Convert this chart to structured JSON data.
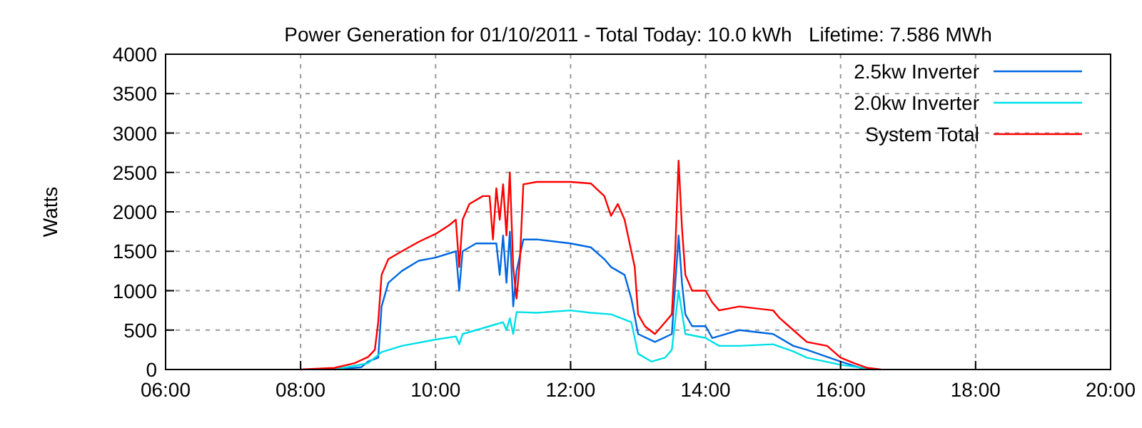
{
  "chart_data": {
    "type": "line",
    "title": "Power Generation for 01/10/2011 - Total Today: 10.0 kWh   Lifetime: 7.586 MWh",
    "ylabel": "Watts",
    "xlim": [
      6,
      20
    ],
    "xticks": [
      {
        "value": 6,
        "label": "06:00"
      },
      {
        "value": 8,
        "label": "08:00"
      },
      {
        "value": 10,
        "label": "10:00"
      },
      {
        "value": 12,
        "label": "12:00"
      },
      {
        "value": 14,
        "label": "14:00"
      },
      {
        "value": 16,
        "label": "16:00"
      },
      {
        "value": 18,
        "label": "18:00"
      },
      {
        "value": 20,
        "label": "20:00"
      }
    ],
    "ylim": [
      0,
      4000
    ],
    "yticks": [
      0,
      500,
      1000,
      1500,
      2000,
      2500,
      3000,
      3500,
      4000
    ],
    "grid": true,
    "legend": "top right",
    "line_style": "solid",
    "series": [
      {
        "name": "2.5kw Inverter",
        "color": "#0068e0",
        "x": [
          8.5,
          8.9,
          9.0,
          9.15,
          9.2,
          9.3,
          9.5,
          9.75,
          10.0,
          10.3,
          10.35,
          10.4,
          10.6,
          10.9,
          10.95,
          11.0,
          11.05,
          11.1,
          11.15,
          11.2,
          11.3,
          11.5,
          12.0,
          12.3,
          12.5,
          12.6,
          12.8,
          12.9,
          13.0,
          13.25,
          13.5,
          13.6,
          13.65,
          13.7,
          13.8,
          14.0,
          14.1,
          14.5,
          15.0,
          15.3,
          15.5,
          16.0,
          16.3,
          16.5
        ],
        "values": [
          0,
          30,
          100,
          150,
          800,
          1100,
          1250,
          1380,
          1420,
          1500,
          1000,
          1500,
          1600,
          1600,
          1200,
          1700,
          1100,
          1750,
          800,
          1250,
          1650,
          1650,
          1600,
          1550,
          1400,
          1300,
          1200,
          900,
          450,
          350,
          450,
          1700,
          1100,
          700,
          550,
          550,
          400,
          500,
          450,
          300,
          250,
          100,
          20,
          0
        ]
      },
      {
        "name": "2.0kw Inverter",
        "color": "#00e0e8",
        "x": [
          8.5,
          9.0,
          9.2,
          9.5,
          10.0,
          10.3,
          10.35,
          10.4,
          10.8,
          11.0,
          11.05,
          11.1,
          11.15,
          11.2,
          11.5,
          12.0,
          12.3,
          12.6,
          12.9,
          13.0,
          13.2,
          13.4,
          13.5,
          13.6,
          13.7,
          14.0,
          14.2,
          14.5,
          15.0,
          15.3,
          15.5,
          16.0,
          16.5
        ],
        "values": [
          0,
          80,
          220,
          300,
          380,
          420,
          320,
          450,
          550,
          600,
          500,
          650,
          450,
          730,
          720,
          750,
          720,
          700,
          600,
          200,
          100,
          150,
          250,
          1000,
          450,
          400,
          300,
          300,
          320,
          230,
          150,
          60,
          0
        ]
      },
      {
        "name": "System Total",
        "color": "#ff0000",
        "x": [
          8.0,
          8.5,
          8.8,
          9.0,
          9.1,
          9.15,
          9.2,
          9.3,
          9.5,
          9.75,
          10.0,
          10.2,
          10.3,
          10.35,
          10.4,
          10.5,
          10.7,
          10.8,
          10.85,
          10.9,
          10.95,
          11.0,
          11.05,
          11.1,
          11.15,
          11.2,
          11.25,
          11.3,
          11.5,
          12.0,
          12.3,
          12.5,
          12.6,
          12.7,
          12.8,
          12.9,
          12.95,
          13.0,
          13.1,
          13.25,
          13.4,
          13.5,
          13.55,
          13.6,
          13.65,
          13.7,
          13.8,
          14.0,
          14.1,
          14.2,
          14.5,
          15.0,
          15.1,
          15.3,
          15.5,
          15.8,
          16.0,
          16.2,
          16.4,
          16.6
        ],
        "values": [
          0,
          20,
          80,
          160,
          250,
          600,
          1200,
          1400,
          1500,
          1620,
          1720,
          1830,
          1900,
          1300,
          1900,
          2100,
          2200,
          2200,
          1650,
          2300,
          1900,
          2350,
          1700,
          2500,
          1300,
          900,
          1400,
          2350,
          2380,
          2380,
          2360,
          2200,
          1950,
          2100,
          1900,
          1500,
          1300,
          700,
          550,
          450,
          600,
          700,
          1500,
          2650,
          1800,
          1200,
          1000,
          1000,
          850,
          750,
          800,
          750,
          650,
          500,
          350,
          300,
          150,
          80,
          20,
          0
        ]
      }
    ]
  }
}
